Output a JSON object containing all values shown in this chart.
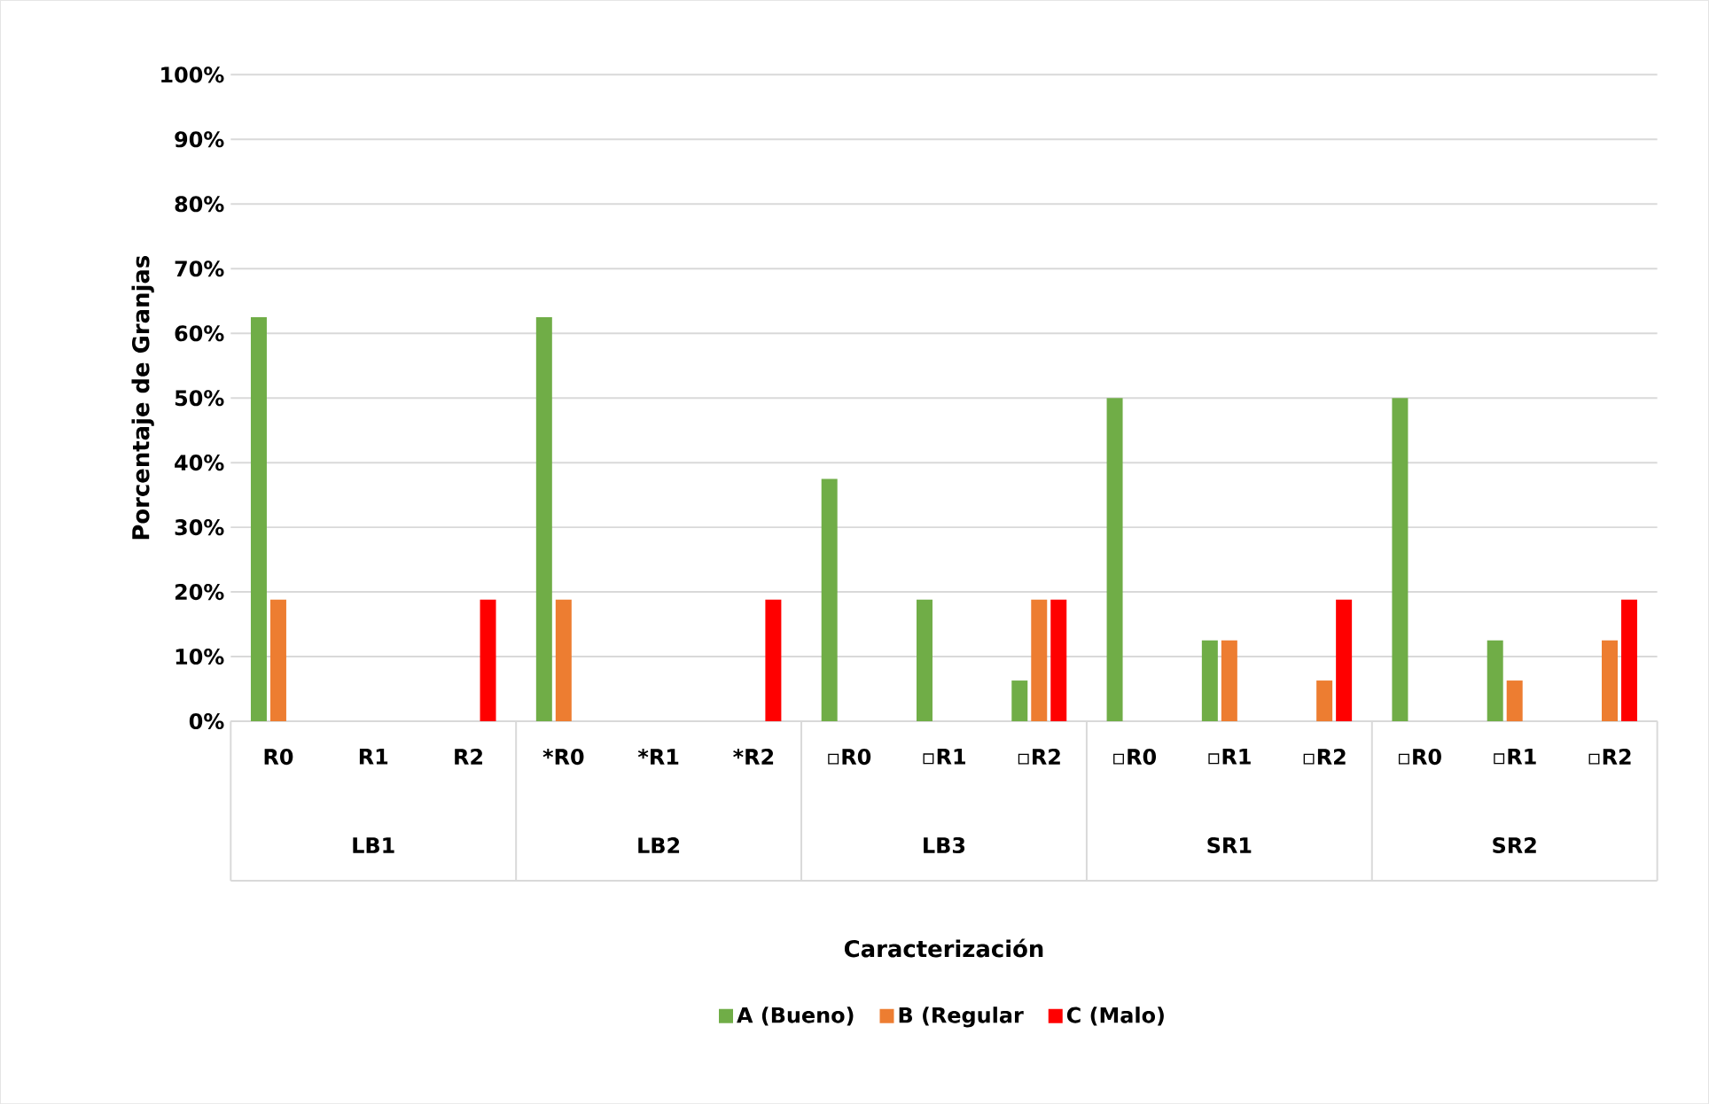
{
  "chart_data": {
    "type": "bar",
    "ylabel": "Porcentaje de Granjas",
    "categories": [
      "R0",
      "R1",
      "R2",
      "*R0",
      "*R1",
      "*R2",
      "▫R0",
      "▫R1",
      "▫R2",
      "▫R0",
      "▫R1",
      "▫R2",
      "▫R0",
      "▫R1",
      "▫R2"
    ],
    "annotations": [
      "LB1",
      "LB2",
      "LB3",
      "SR1",
      "SR2",
      "Caracterización"
    ],
    "series": [
      {
        "name": "A (Bueno)",
        "color": "#70ad47",
        "values": [
          62.5,
          0,
          0,
          62.5,
          0,
          0,
          37.5,
          18.8,
          6.3,
          50,
          12.5,
          0,
          50,
          12.5,
          0
        ]
      },
      {
        "name": "B (Regular",
        "color": "#ed7d31",
        "values": [
          18.8,
          0,
          0,
          18.8,
          0,
          0,
          0,
          0,
          18.8,
          0,
          12.5,
          6.3,
          0,
          6.3,
          12.5
        ]
      },
      {
        "name": "C (Malo)",
        "color": "#ff0000",
        "values": [
          0,
          0,
          18.8,
          0,
          0,
          18.8,
          0,
          0,
          18.8,
          0,
          0,
          18.8,
          0,
          0,
          18.8
        ]
      }
    ],
    "ylim": [
      0,
      100
    ],
    "yticks": [
      {
        "value": 0,
        "label": "0%"
      },
      {
        "value": 10,
        "label": "10%"
      },
      {
        "value": 20,
        "label": "20%"
      },
      {
        "value": 30,
        "label": "30%"
      },
      {
        "value": 40,
        "label": "40%"
      },
      {
        "value": 50,
        "label": "50%"
      },
      {
        "value": 60,
        "label": "60%"
      },
      {
        "value": 70,
        "label": "70%"
      },
      {
        "value": 80,
        "label": "80%"
      },
      {
        "value": 90,
        "label": "90%"
      },
      {
        "value": 100,
        "label": "100%"
      }
    ],
    "grid": "y",
    "legend": "bottom"
  }
}
